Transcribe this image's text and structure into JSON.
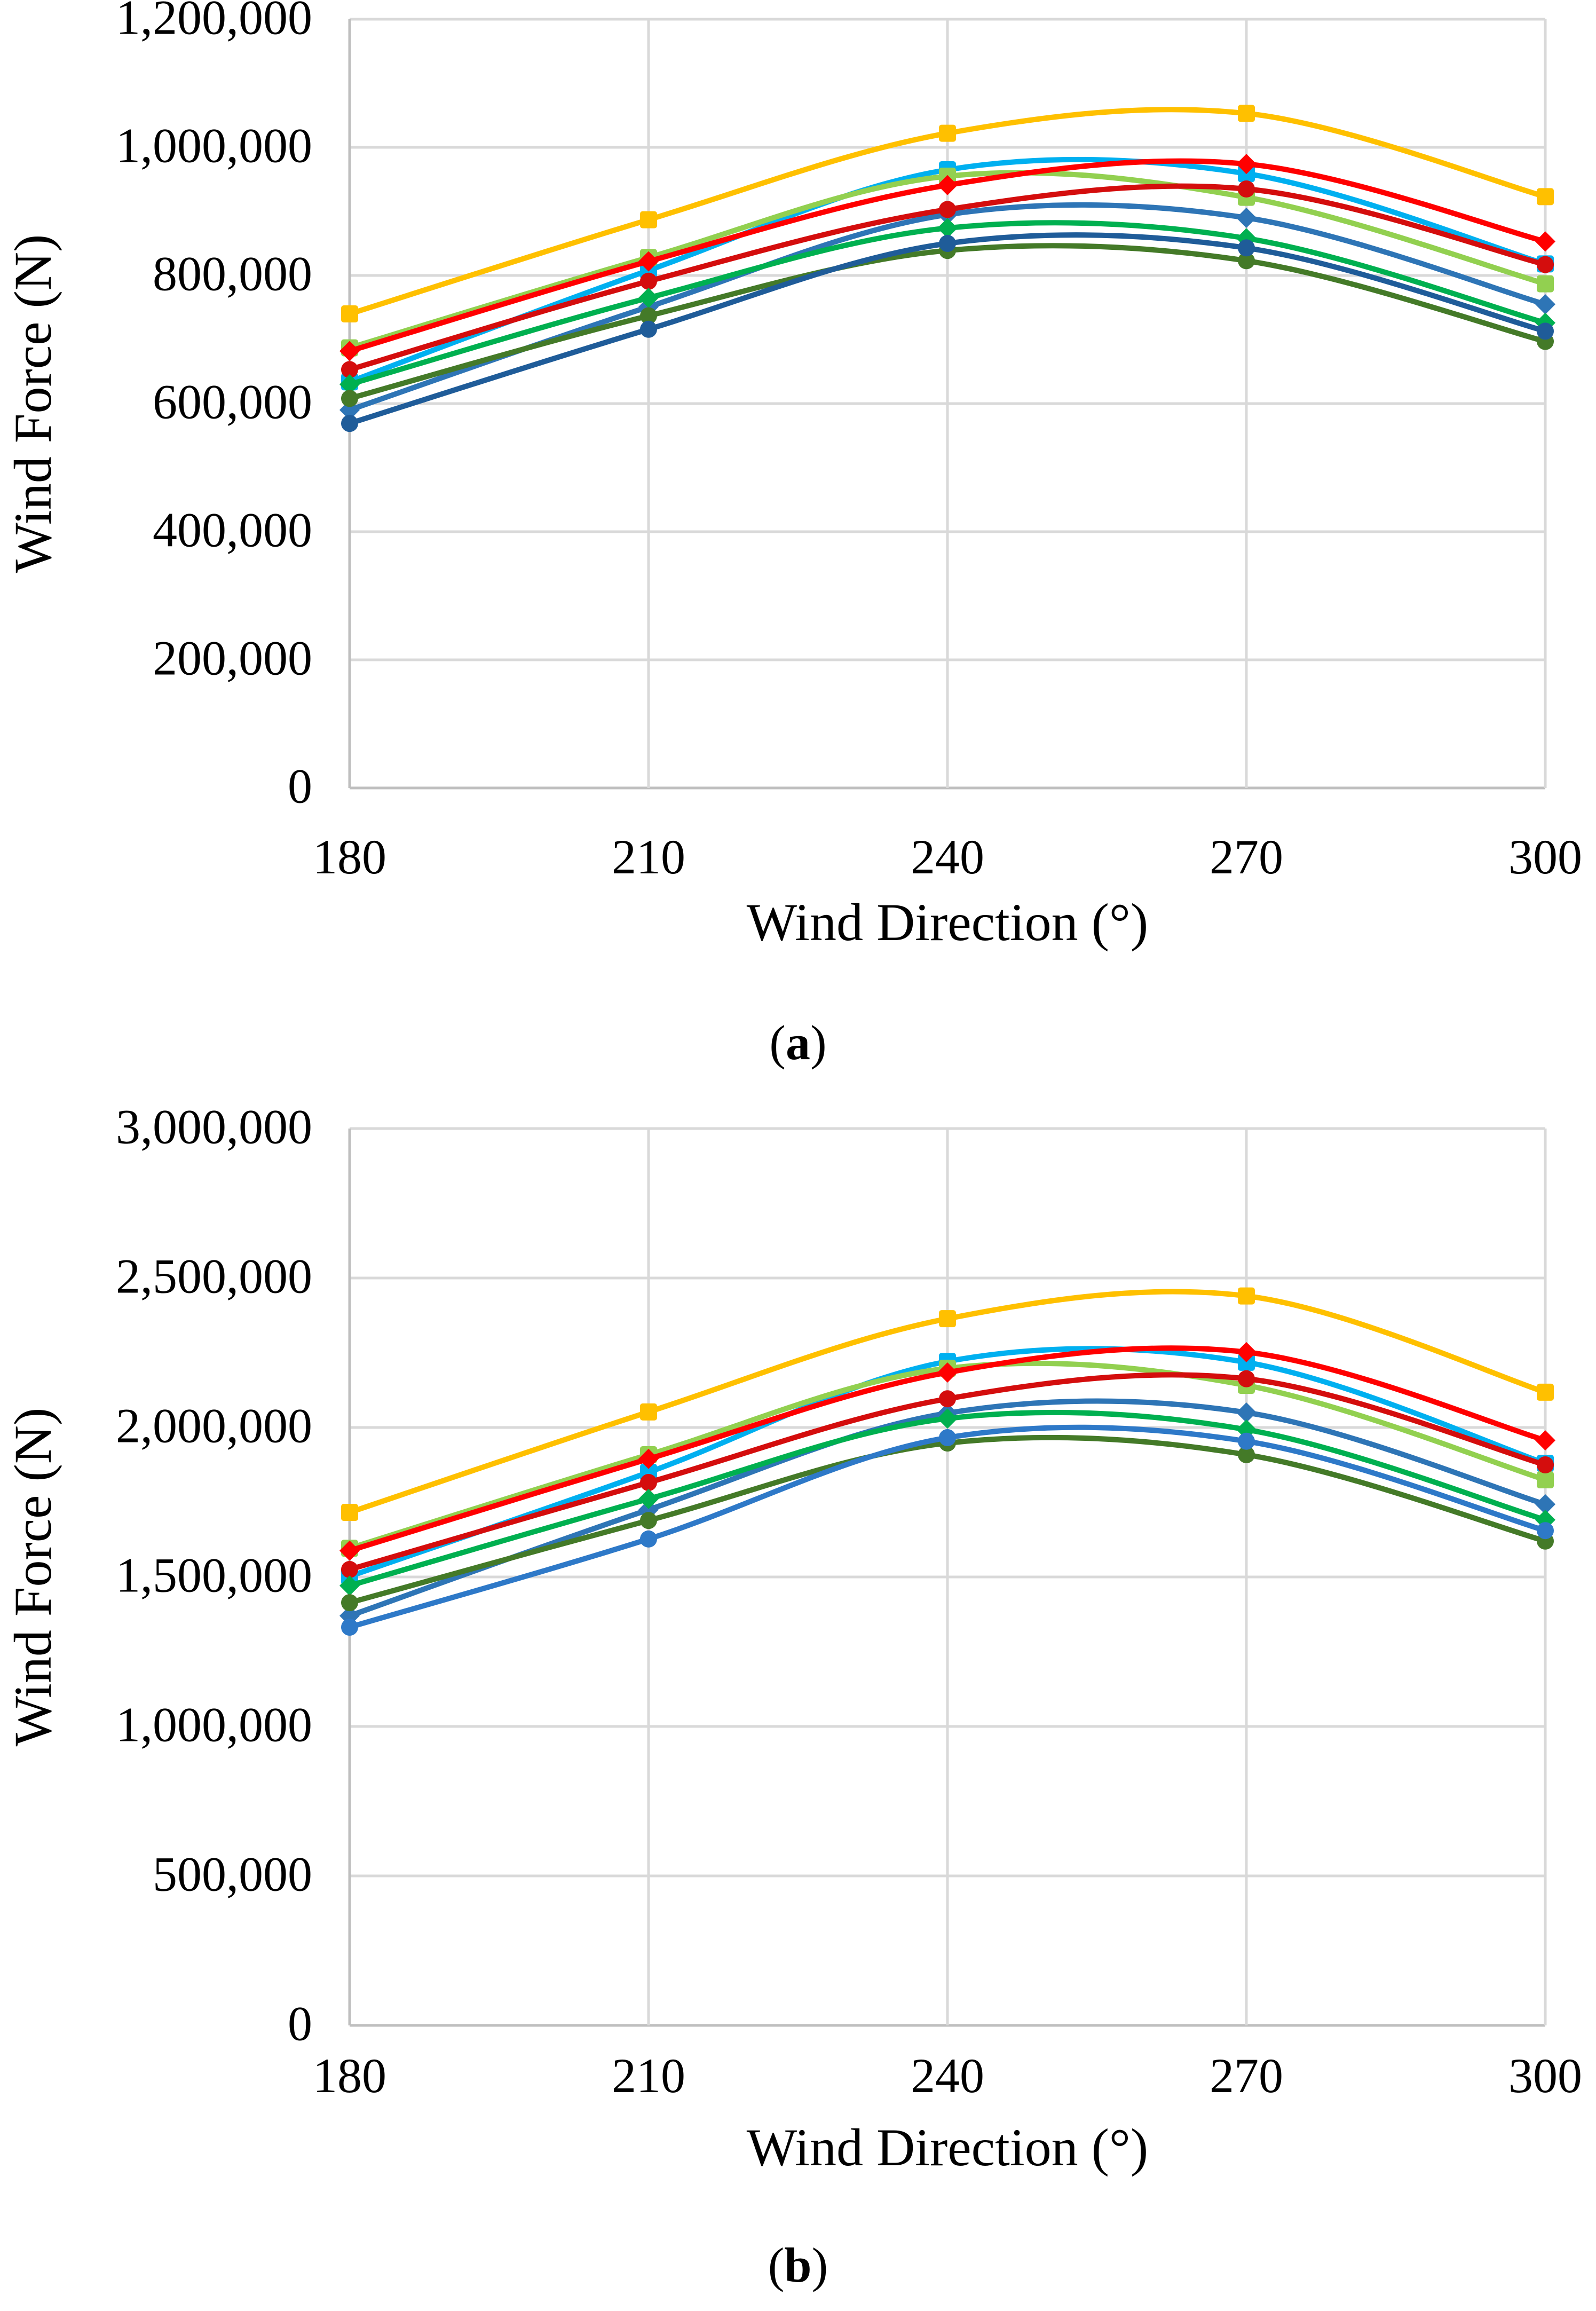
{
  "figure": {
    "background": "#FFFFFF",
    "text_color": "#000000",
    "gridline_color": "#D9D9D9",
    "axis_line_color": "#BFBFBF"
  },
  "chart_data": [
    {
      "type": "line",
      "panel": "a",
      "caption": {
        "open": "(",
        "letter": "a",
        "close": ")"
      },
      "xlabel": "Wind Direction (°)",
      "ylabel": "Wind Force (N)",
      "x": [
        180,
        210,
        240,
        270,
        300
      ],
      "x_tick_labels": [
        "180",
        "210",
        "240",
        "270",
        "300"
      ],
      "xlim": [
        180,
        300
      ],
      "ylim": [
        0,
        1200000
      ],
      "y_tick_step": 200000,
      "y_tick_labels": [
        "0",
        "200,000",
        "400,000",
        "600,000",
        "800,000",
        "1,000,000",
        "1,200,000"
      ],
      "grid": true,
      "legend": "none",
      "smooth_lines": true,
      "series": [
        {
          "name": "cyan-square",
          "marker": "square",
          "color": "#00B0F0",
          "values": [
            634000,
            808000,
            965000,
            959000,
            818000
          ]
        },
        {
          "name": "light-green-square",
          "marker": "square",
          "color": "#92D050",
          "values": [
            687000,
            828000,
            955000,
            922000,
            787000
          ]
        },
        {
          "name": "blue-diamond",
          "marker": "diamond",
          "color": "#2E75B6",
          "values": [
            590000,
            751000,
            895000,
            890000,
            755000
          ]
        },
        {
          "name": "yellow-square",
          "marker": "square",
          "color": "#FFC000",
          "values": [
            740000,
            887000,
            1022000,
            1053000,
            923000
          ]
        },
        {
          "name": "red-diamond",
          "marker": "diamond",
          "color": "#FF0000",
          "values": [
            682000,
            822000,
            941000,
            974000,
            853000
          ]
        },
        {
          "name": "red-circle",
          "marker": "circle",
          "color": "#D40D0D",
          "values": [
            653000,
            791000,
            903000,
            935000,
            817000
          ]
        },
        {
          "name": "green-diamond",
          "marker": "diamond",
          "color": "#00B050",
          "values": [
            630000,
            765000,
            874000,
            858000,
            726000
          ]
        },
        {
          "name": "dark-green-circle",
          "marker": "circle",
          "color": "#447A28",
          "values": [
            608000,
            737000,
            839000,
            823000,
            697000
          ]
        },
        {
          "name": "dark-blue-circle",
          "marker": "circle",
          "color": "#1F5C99",
          "values": [
            569000,
            716000,
            850000,
            843000,
            713000
          ]
        }
      ]
    },
    {
      "type": "line",
      "panel": "b",
      "caption": {
        "open": "(",
        "letter": "b",
        "close": ")"
      },
      "xlabel": "Wind Direction (°)",
      "ylabel": "Wind Force (N)",
      "x": [
        180,
        210,
        240,
        270,
        300
      ],
      "x_tick_labels": [
        "180",
        "210",
        "240",
        "270",
        "300"
      ],
      "xlim": [
        180,
        300
      ],
      "ylim": [
        0,
        3000000
      ],
      "y_tick_step": 500000,
      "y_tick_labels": [
        "0",
        "500,000",
        "1,000,000",
        "1,500,000",
        "2,000,000",
        "2,500,000",
        "3,000,000"
      ],
      "grid": true,
      "legend": "none",
      "smooth_lines": true,
      "series": [
        {
          "name": "cyan-square",
          "marker": "square",
          "color": "#00B0F0",
          "values": [
            1502000,
            1850000,
            2221000,
            2218000,
            1880000
          ]
        },
        {
          "name": "light-green-square",
          "marker": "square",
          "color": "#92D050",
          "values": [
            1596000,
            1909000,
            2198000,
            2141000,
            1825000
          ]
        },
        {
          "name": "blue-diamond",
          "marker": "diamond",
          "color": "#2E75B6",
          "values": [
            1370000,
            1725000,
            2048000,
            2050000,
            1743000
          ]
        },
        {
          "name": "yellow-square",
          "marker": "square",
          "color": "#FFC000",
          "values": [
            1716000,
            2052000,
            2364000,
            2440000,
            2118000
          ]
        },
        {
          "name": "red-diamond",
          "marker": "diamond",
          "color": "#FF0000",
          "values": [
            1588000,
            1895000,
            2184000,
            2252000,
            1957000
          ]
        },
        {
          "name": "red-circle",
          "marker": "circle",
          "color": "#D40D0D",
          "values": [
            1525000,
            1816000,
            2096000,
            2163000,
            1875000
          ]
        },
        {
          "name": "green-diamond",
          "marker": "diamond",
          "color": "#00B050",
          "values": [
            1471000,
            1761000,
            2030000,
            1993000,
            1691000
          ]
        },
        {
          "name": "dark-green-circle",
          "marker": "circle",
          "color": "#447A28",
          "values": [
            1414000,
            1689000,
            1948000,
            1909000,
            1620000
          ]
        },
        {
          "name": "blue-circle",
          "marker": "circle",
          "color": "#2E79C8",
          "values": [
            1332000,
            1627000,
            1966000,
            1954000,
            1655000
          ]
        }
      ]
    }
  ]
}
